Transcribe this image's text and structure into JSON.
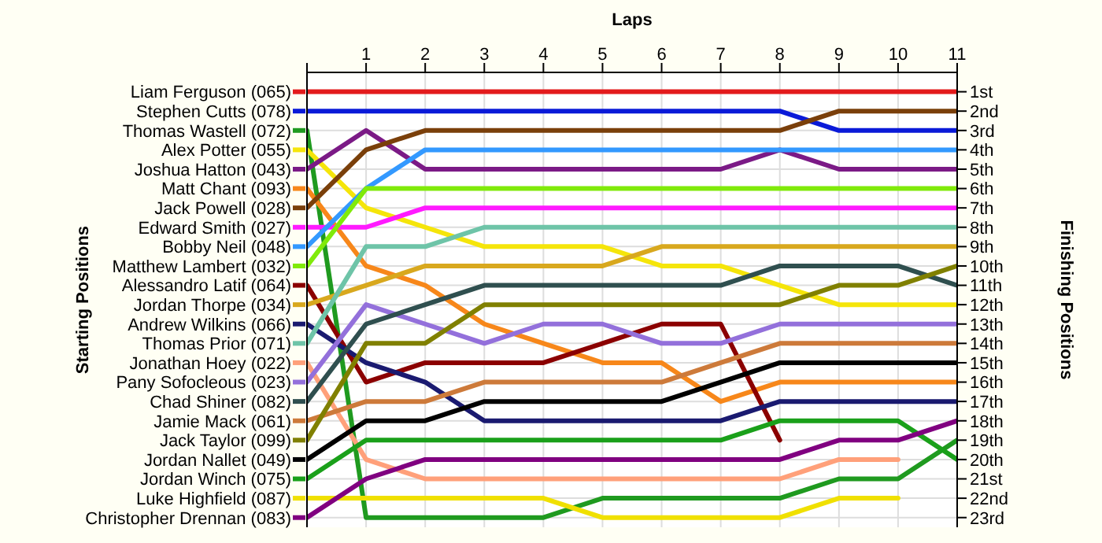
{
  "chart_data": {
    "type": "line",
    "xlabel": "Laps",
    "annotations": [
      "Starting Positions"
    ],
    "y2label": "Finishing Positions",
    "x": [
      0,
      1,
      2,
      3,
      4,
      5,
      6,
      7,
      8,
      9,
      10,
      11
    ],
    "xlim": [
      0,
      11
    ],
    "xticks": [
      {
        "value": 0,
        "label": null
      },
      1,
      2,
      3,
      4,
      5,
      6,
      7,
      8,
      9,
      10,
      11
    ],
    "y2lim": [
      23.5,
      0
    ],
    "y2ticks": [
      {
        "value": 1,
        "label": "1st"
      },
      {
        "value": 2,
        "label": "2nd"
      },
      {
        "value": 3,
        "label": "3rd"
      },
      {
        "value": 4,
        "label": "4th"
      },
      {
        "value": 5,
        "label": "5th"
      },
      {
        "value": 6,
        "label": "6th"
      },
      {
        "value": 7,
        "label": "7th"
      },
      {
        "value": 8,
        "label": "8th"
      },
      {
        "value": 9,
        "label": "9th"
      },
      {
        "value": 10,
        "label": "10th"
      },
      {
        "value": 11,
        "label": "11th"
      },
      {
        "value": 12,
        "label": "12th"
      },
      {
        "value": 13,
        "label": "13th"
      },
      {
        "value": 14,
        "label": "14th"
      },
      {
        "value": 15,
        "label": "15th"
      },
      {
        "value": 16,
        "label": "16th"
      },
      {
        "value": 17,
        "label": "17th"
      },
      {
        "value": 18,
        "label": "18th"
      },
      {
        "value": 19,
        "label": "19th"
      },
      {
        "value": 20,
        "label": "20th"
      },
      {
        "value": 21,
        "label": "21st"
      },
      {
        "value": 22,
        "label": "22nd"
      },
      {
        "value": 23,
        "label": "23rd"
      }
    ],
    "grid": true,
    "legend": "left",
    "marker": "none",
    "line_style": "solid",
    "series": [
      {
        "name": "Liam Ferguson (065)",
        "axis": "y2",
        "color": "#e31a1c",
        "values": [
          1,
          1,
          1,
          1,
          1,
          1,
          1,
          1,
          1,
          1,
          1,
          1
        ]
      },
      {
        "name": "Stephen Cutts (078)",
        "axis": "y2",
        "color": "#0a1ad8",
        "values": [
          2,
          2,
          2,
          2,
          2,
          2,
          2,
          2,
          2,
          3,
          3,
          3
        ]
      },
      {
        "name": "Thomas Wastell (072)",
        "axis": "y2",
        "color": "#1f9a1f",
        "values": [
          3,
          23,
          23,
          23,
          23,
          22,
          22,
          22,
          22,
          21,
          21,
          19
        ]
      },
      {
        "name": "Alex Potter (055)",
        "axis": "y2",
        "color": "#f5e50a",
        "values": [
          4,
          7,
          8,
          9,
          9,
          9,
          10,
          10,
          11,
          12,
          12,
          12
        ]
      },
      {
        "name": "Joshua Hatton (043)",
        "axis": "y2",
        "color": "#7b1a86",
        "values": [
          5,
          3,
          5,
          5,
          5,
          5,
          5,
          5,
          4,
          5,
          5,
          5
        ]
      },
      {
        "name": "Matt Chant (093)",
        "axis": "y2",
        "color": "#f7871a",
        "values": [
          6,
          10,
          11,
          13,
          14,
          15,
          15,
          17,
          16,
          16,
          16,
          16
        ]
      },
      {
        "name": "Jack Powell (028)",
        "axis": "y2",
        "color": "#7a3f0a",
        "values": [
          7,
          4,
          3,
          3,
          3,
          3,
          3,
          3,
          3,
          2,
          2,
          2
        ]
      },
      {
        "name": "Edward Smith (027)",
        "axis": "y2",
        "color": "#ff1aff",
        "values": [
          8,
          8,
          7,
          7,
          7,
          7,
          7,
          7,
          7,
          7,
          7,
          7
        ]
      },
      {
        "name": "Bobby Neil (048)",
        "axis": "y2",
        "color": "#3399ff",
        "values": [
          9,
          6,
          4,
          4,
          4,
          4,
          4,
          4,
          4,
          4,
          4,
          4
        ]
      },
      {
        "name": "Matthew Lambert (032)",
        "axis": "y2",
        "color": "#80ea0a",
        "values": [
          10,
          6,
          6,
          6,
          6,
          6,
          6,
          6,
          6,
          6,
          6,
          6
        ]
      },
      {
        "name": "Alessandro Latif (064)",
        "axis": "y2",
        "color": "#8b0000",
        "values": [
          11,
          16,
          15,
          15,
          15,
          14,
          13,
          13,
          19,
          null,
          null,
          null
        ]
      },
      {
        "name": "Jordan Thorpe (034)",
        "axis": "y2",
        "color": "#d8a81e",
        "values": [
          12,
          11,
          10,
          10,
          10,
          10,
          9,
          9,
          9,
          9,
          9,
          9
        ]
      },
      {
        "name": "Andrew Wilkins (066)",
        "axis": "y2",
        "color": "#1a1a70",
        "values": [
          13,
          15,
          16,
          18,
          18,
          18,
          18,
          18,
          17,
          17,
          17,
          17
        ]
      },
      {
        "name": "Thomas Prior (071)",
        "axis": "y2",
        "color": "#6ec4a8",
        "values": [
          14,
          9,
          9,
          8,
          8,
          8,
          8,
          8,
          8,
          8,
          8,
          8
        ]
      },
      {
        "name": "Jonathan Hoey (022)",
        "axis": "y2",
        "color": "#ffa07a",
        "values": [
          15,
          20,
          21,
          21,
          21,
          21,
          21,
          21,
          21,
          20,
          20,
          null
        ]
      },
      {
        "name": "Pany Sofocleous (023)",
        "axis": "y2",
        "color": "#9370db",
        "values": [
          16,
          12,
          13,
          14,
          13,
          13,
          14,
          14,
          13,
          13,
          13,
          13
        ]
      },
      {
        "name": "Chad Shiner (082)",
        "axis": "y2",
        "color": "#2f4f4f",
        "values": [
          17,
          13,
          12,
          11,
          11,
          11,
          11,
          11,
          10,
          10,
          10,
          11
        ]
      },
      {
        "name": "Jamie Mack (061)",
        "axis": "y2",
        "color": "#cd7a3a",
        "values": [
          18,
          17,
          17,
          16,
          16,
          16,
          16,
          15,
          14,
          14,
          14,
          14
        ]
      },
      {
        "name": "Jack Taylor (099)",
        "axis": "y2",
        "color": "#808000",
        "values": [
          19,
          14,
          14,
          12,
          12,
          12,
          12,
          12,
          12,
          11,
          11,
          10
        ]
      },
      {
        "name": "Jordan Nallet (049)",
        "axis": "y2",
        "color": "#000000",
        "values": [
          20,
          18,
          18,
          17,
          17,
          17,
          17,
          16,
          15,
          15,
          15,
          15
        ]
      },
      {
        "name": "Jordan Winch (075)",
        "axis": "y2",
        "color": "#1aa01a",
        "values": [
          21,
          19,
          19,
          19,
          19,
          19,
          19,
          19,
          18,
          18,
          18,
          20
        ]
      },
      {
        "name": "Luke Highfield (087)",
        "axis": "y2",
        "color": "#f0e000",
        "values": [
          22,
          22,
          22,
          22,
          22,
          23,
          23,
          23,
          23,
          22,
          22,
          null
        ]
      },
      {
        "name": "Christopher Drennan (083)",
        "axis": "y2",
        "color": "#800080",
        "values": [
          23,
          21,
          20,
          20,
          20,
          20,
          20,
          20,
          20,
          19,
          19,
          18
        ]
      }
    ]
  }
}
